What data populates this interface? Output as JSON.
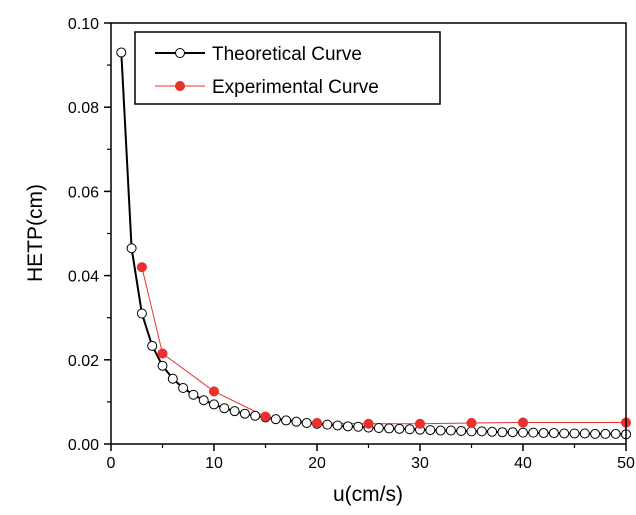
{
  "chart_data": {
    "type": "line",
    "title": "",
    "xlabel": "u(cm/s)",
    "ylabel": "HETP(cm)",
    "xlim": [
      0,
      50
    ],
    "ylim": [
      0,
      0.1
    ],
    "x_ticks": [
      {
        "value": 0,
        "label": "0"
      },
      {
        "value": 10,
        "label": "10"
      },
      {
        "value": 20,
        "label": "20"
      },
      {
        "value": 30,
        "label": "30"
      },
      {
        "value": 40,
        "label": "40"
      },
      {
        "value": 50,
        "label": "50"
      }
    ],
    "y_ticks": [
      {
        "value": 0,
        "label": "0.00"
      },
      {
        "value": 0.02,
        "label": "0.02"
      },
      {
        "value": 0.04,
        "label": "0.04"
      },
      {
        "value": 0.06,
        "label": "0.06"
      },
      {
        "value": 0.08,
        "label": "0.08"
      },
      {
        "value": 0.1,
        "label": "0.10"
      }
    ],
    "grid": false,
    "legend_position": "top-left",
    "series": [
      {
        "name": "Theoretical Curve",
        "style": "line-open-circle",
        "color": "#000000",
        "x": [
          1,
          2,
          3,
          4,
          5,
          6,
          7,
          8,
          9,
          10,
          11,
          12,
          13,
          14,
          15,
          16,
          17,
          18,
          19,
          20,
          21,
          22,
          23,
          24,
          25,
          26,
          27,
          28,
          29,
          30,
          31,
          32,
          33,
          34,
          35,
          36,
          37,
          38,
          39,
          40,
          41,
          42,
          43,
          44,
          45,
          46,
          47,
          48,
          49,
          50
        ],
        "y": [
          0.093,
          0.0465,
          0.031,
          0.0233,
          0.0186,
          0.0155,
          0.0133,
          0.0117,
          0.0104,
          0.0094,
          0.0085,
          0.0078,
          0.0072,
          0.0067,
          0.0063,
          0.0059,
          0.0056,
          0.0053,
          0.005,
          0.0048,
          0.0046,
          0.0044,
          0.0042,
          0.0041,
          0.0039,
          0.0038,
          0.0037,
          0.0036,
          0.0035,
          0.0034,
          0.0033,
          0.0032,
          0.0032,
          0.0031,
          0.003,
          0.003,
          0.0029,
          0.0028,
          0.0028,
          0.0027,
          0.0027,
          0.0026,
          0.0026,
          0.0025,
          0.0025,
          0.0025,
          0.0024,
          0.0024,
          0.0024,
          0.0023
        ]
      },
      {
        "name": "Experimental Curve",
        "style": "line-filled-circle",
        "color": "#e8302f",
        "x": [
          3,
          5,
          10,
          15,
          20,
          25,
          30,
          35,
          40,
          50
        ],
        "y": [
          0.042,
          0.0215,
          0.0125,
          0.0065,
          0.005,
          0.0048,
          0.0048,
          0.005,
          0.0051,
          0.0051
        ]
      }
    ]
  }
}
